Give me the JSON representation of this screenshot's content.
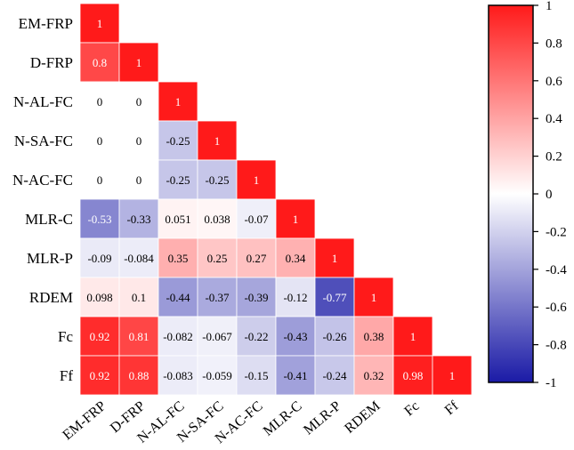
{
  "chart_data": {
    "type": "heatmap",
    "title": "",
    "variables": [
      "EM-FRP",
      "D-FRP",
      "N-AL-FC",
      "N-SA-FC",
      "N-AC-FC",
      "MLR-C",
      "MLR-P",
      "RDEM",
      "Fc",
      "Ff"
    ],
    "matrix": [
      [
        1
      ],
      [
        0.8,
        1
      ],
      [
        0,
        0,
        1
      ],
      [
        0,
        0,
        -0.25,
        1
      ],
      [
        0,
        0,
        -0.25,
        -0.25,
        1
      ],
      [
        -0.53,
        -0.33,
        0.051,
        0.038,
        -0.07,
        1
      ],
      [
        -0.09,
        -0.084,
        0.35,
        0.25,
        0.27,
        0.34,
        1
      ],
      [
        0.098,
        0.1,
        -0.44,
        -0.37,
        -0.39,
        -0.12,
        -0.77,
        1
      ],
      [
        0.92,
        0.81,
        -0.082,
        -0.067,
        -0.22,
        -0.43,
        -0.26,
        0.38,
        1
      ],
      [
        0.92,
        0.88,
        -0.083,
        -0.059,
        -0.15,
        -0.41,
        -0.24,
        0.32,
        0.98,
        1
      ]
    ],
    "colorbar": {
      "range": [
        -1,
        1
      ],
      "ticks": [
        "1",
        "0.8",
        "0.6",
        "0.4",
        "0.2",
        "0",
        "-0.2",
        "-0.4",
        "-0.6",
        "-0.8",
        "-1"
      ],
      "colors": {
        "negative": "#1a1aa6",
        "zero": "#ffffff",
        "positive": "#ff1a1a"
      }
    }
  }
}
